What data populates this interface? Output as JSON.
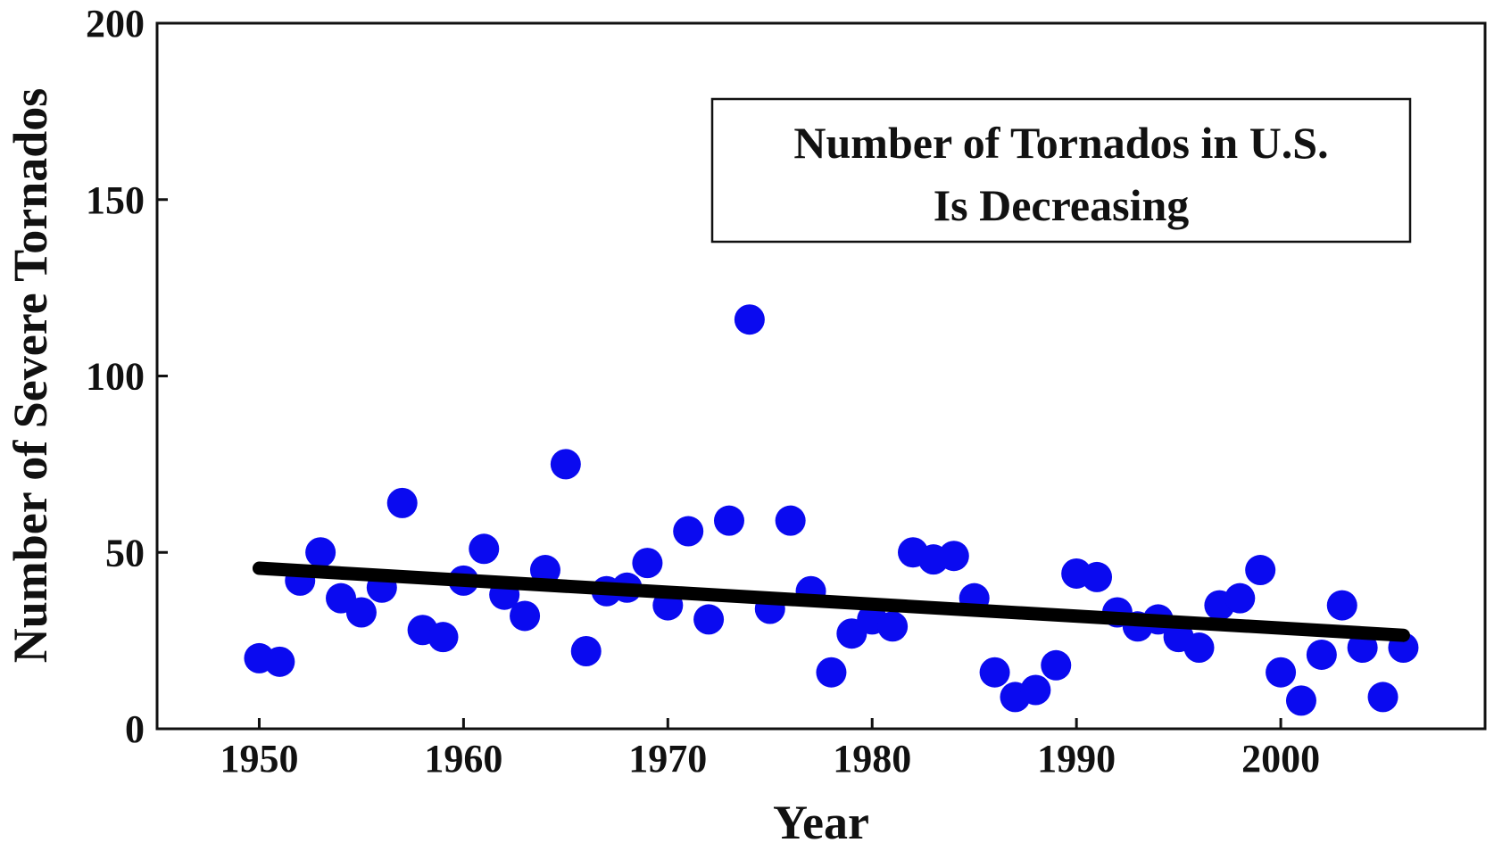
{
  "colors": {
    "point": "#0a0af0",
    "trend": "#000000",
    "axis": "#111111",
    "background": "#ffffff"
  },
  "chart_data": {
    "type": "scatter",
    "xlabel": "Year",
    "ylabel": "Number of Severe Tornados",
    "annotation": [
      "Number of Tornados in U.S.",
      "Is Decreasing"
    ],
    "xlim": [
      1945,
      2010
    ],
    "ylim": [
      0,
      200
    ],
    "xticks": [
      1950,
      1960,
      1970,
      1980,
      1990,
      2000
    ],
    "yticks": [
      0,
      50,
      100,
      150,
      200
    ],
    "grid": false,
    "series": [
      {
        "x": [
          1950,
          1951,
          1952,
          1953,
          1954,
          1955,
          1956,
          1957,
          1958,
          1959,
          1960,
          1961,
          1962,
          1963,
          1964,
          1965,
          1966,
          1967,
          1968,
          1969,
          1970,
          1971,
          1972,
          1973,
          1974,
          1975,
          1976,
          1977,
          1978,
          1979,
          1980,
          1981,
          1982,
          1983,
          1984,
          1985,
          1986,
          1987,
          1988,
          1989,
          1990,
          1991,
          1992,
          1993,
          1994,
          1995,
          1996,
          1997,
          1998,
          1999,
          2000,
          2001,
          2002,
          2003,
          2004,
          2005,
          2006
        ],
        "y": [
          20,
          19,
          42,
          50,
          37,
          33,
          40,
          64,
          28,
          26,
          42,
          51,
          38,
          32,
          45,
          75,
          22,
          39,
          40,
          47,
          35,
          56,
          31,
          59,
          116,
          34,
          59,
          39,
          16,
          27,
          31,
          29,
          50,
          48,
          49,
          37,
          16,
          9,
          11,
          18,
          44,
          43,
          33,
          29,
          31,
          26,
          23,
          35,
          37,
          45,
          16,
          8,
          21,
          35,
          23,
          9,
          23
        ]
      }
    ],
    "trend_line": {
      "x": [
        1950,
        2006
      ],
      "y": [
        45.5,
        26.5
      ]
    }
  }
}
